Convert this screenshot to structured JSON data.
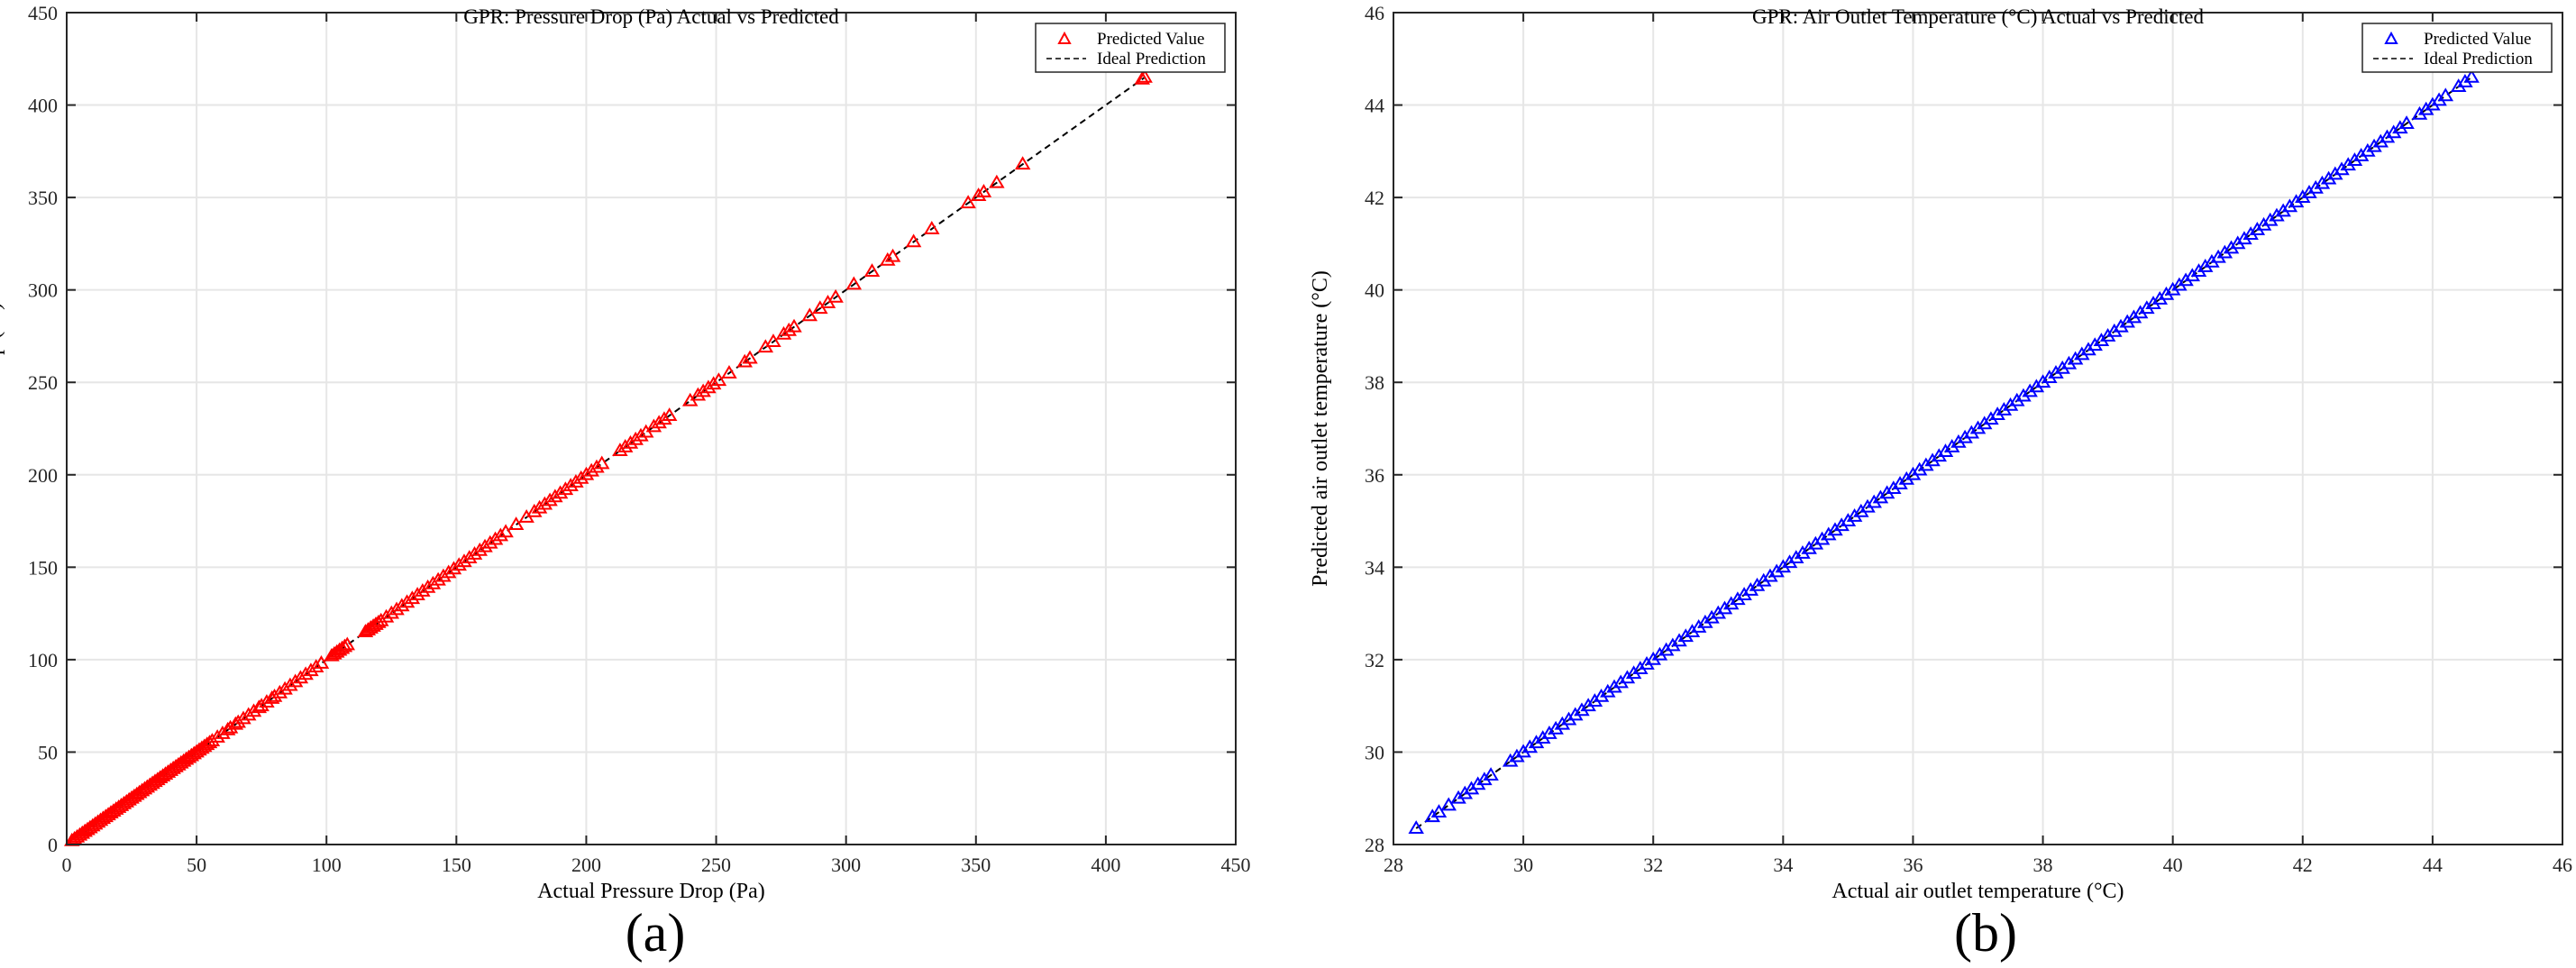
{
  "chart_data": [
    {
      "type": "scatter",
      "panel_label": "(a)",
      "title": "GPR: Pressure Drop (Pa) Actual vs Predicted",
      "xlabel": "Actual Pressure Drop (Pa)",
      "ylabel": "Predicted Pressure Drop (Pa)",
      "xlim": [
        0,
        450
      ],
      "ylim": [
        0,
        450
      ],
      "xticks": [
        0,
        50,
        100,
        150,
        200,
        250,
        300,
        350,
        400,
        450
      ],
      "yticks": [
        0,
        50,
        100,
        150,
        200,
        250,
        300,
        350,
        400,
        450
      ],
      "grid": true,
      "legend_position": "top-right",
      "series": [
        {
          "name": "Predicted Value",
          "marker": "triangle-open",
          "color": "#ff0000",
          "x": [
            2,
            3,
            4,
            5,
            6,
            7,
            8,
            9,
            10,
            11,
            12,
            13,
            14,
            15,
            16,
            17,
            18,
            19,
            20,
            21,
            22,
            23,
            24,
            25,
            26,
            27,
            28,
            29,
            30,
            31,
            32,
            33,
            34,
            35,
            36,
            37,
            38,
            39,
            40,
            41,
            42,
            43,
            44,
            45,
            46,
            47,
            48,
            49,
            50,
            51,
            52,
            53,
            54,
            55,
            56,
            58,
            60,
            62,
            63,
            65,
            66,
            68,
            70,
            72,
            74,
            75,
            77,
            79,
            80,
            82,
            84,
            86,
            88,
            90,
            92,
            94,
            96,
            98,
            102,
            103,
            104,
            105,
            106,
            107,
            108,
            115,
            116,
            117,
            118,
            119,
            120,
            121,
            123,
            125,
            127,
            129,
            131,
            133,
            135,
            137,
            139,
            141,
            143,
            145,
            147,
            149,
            151,
            153,
            155,
            157,
            159,
            161,
            163,
            165,
            167,
            169,
            173,
            177,
            180,
            182,
            184,
            186,
            188,
            190,
            192,
            194,
            196,
            198,
            200,
            202,
            204,
            206,
            213,
            215,
            217,
            219,
            221,
            223,
            226,
            228,
            230,
            232,
            240,
            243,
            245,
            247,
            249,
            251,
            255,
            261,
            263,
            269,
            272,
            276,
            278,
            280,
            286,
            290,
            293,
            296,
            303,
            310,
            316,
            318,
            326,
            333,
            347,
            351,
            353,
            358,
            368,
            414,
            415
          ],
          "y": [
            2,
            3,
            4,
            5,
            6,
            7,
            8,
            9,
            10,
            11,
            12,
            13,
            14,
            15,
            16,
            17,
            18,
            19,
            20,
            21,
            22,
            23,
            24,
            25,
            26,
            27,
            28,
            29,
            30,
            31,
            32,
            33,
            34,
            35,
            36,
            37,
            38,
            39,
            40,
            41,
            42,
            43,
            44,
            45,
            46,
            47,
            48,
            49,
            50,
            51,
            52,
            53,
            54,
            55,
            56,
            58,
            60,
            62,
            63,
            65,
            66,
            68,
            70,
            72,
            74,
            75,
            77,
            79,
            80,
            82,
            84,
            86,
            88,
            90,
            92,
            94,
            96,
            98,
            102,
            103,
            104,
            105,
            106,
            107,
            108,
            115,
            116,
            117,
            118,
            119,
            120,
            121,
            123,
            125,
            127,
            129,
            131,
            133,
            135,
            137,
            139,
            141,
            143,
            145,
            147,
            149,
            151,
            153,
            155,
            157,
            159,
            161,
            163,
            165,
            167,
            169,
            173,
            177,
            180,
            182,
            184,
            186,
            188,
            190,
            192,
            194,
            196,
            198,
            200,
            202,
            204,
            206,
            213,
            215,
            217,
            219,
            221,
            223,
            226,
            228,
            230,
            232,
            240,
            243,
            245,
            247,
            249,
            251,
            255,
            261,
            263,
            269,
            272,
            276,
            278,
            280,
            286,
            290,
            293,
            296,
            303,
            310,
            316,
            318,
            326,
            333,
            347,
            351,
            353,
            358,
            368,
            414,
            415
          ]
        },
        {
          "name": "Ideal Prediction",
          "line": "dashed",
          "color": "#000000",
          "x": [
            0,
            415
          ],
          "y": [
            0,
            415
          ]
        }
      ]
    },
    {
      "type": "scatter",
      "panel_label": "(b)",
      "title": "GPR: Air Outlet Temperature (°C) Actual vs Predicted",
      "xlabel": "Actual air outlet temperature (°C)",
      "ylabel": "Predicted air outlet temperature (°C)",
      "xlim": [
        28,
        46
      ],
      "ylim": [
        28,
        46
      ],
      "xticks": [
        28,
        30,
        32,
        34,
        36,
        38,
        40,
        42,
        44,
        46
      ],
      "yticks": [
        28,
        30,
        32,
        34,
        36,
        38,
        40,
        42,
        44,
        46
      ],
      "grid": true,
      "legend_position": "top-right",
      "series": [
        {
          "name": "Predicted Value",
          "marker": "triangle-open",
          "color": "#0000ff",
          "x": [
            28.35,
            28.6,
            28.7,
            28.85,
            29.0,
            29.1,
            29.2,
            29.3,
            29.4,
            29.5,
            29.8,
            29.9,
            30.0,
            30.1,
            30.2,
            30.3,
            30.4,
            30.5,
            30.6,
            30.7,
            30.8,
            30.9,
            31.0,
            31.1,
            31.2,
            31.3,
            31.4,
            31.5,
            31.6,
            31.7,
            31.8,
            31.9,
            32.0,
            32.1,
            32.2,
            32.3,
            32.4,
            32.5,
            32.6,
            32.7,
            32.8,
            32.9,
            33.0,
            33.1,
            33.2,
            33.3,
            33.4,
            33.5,
            33.6,
            33.7,
            33.8,
            33.9,
            34.0,
            34.1,
            34.2,
            34.3,
            34.4,
            34.5,
            34.6,
            34.7,
            34.8,
            34.9,
            35.0,
            35.1,
            35.2,
            35.3,
            35.4,
            35.5,
            35.6,
            35.7,
            35.8,
            35.9,
            36.0,
            36.1,
            36.2,
            36.3,
            36.4,
            36.5,
            36.6,
            36.7,
            36.8,
            36.9,
            37.0,
            37.1,
            37.2,
            37.3,
            37.4,
            37.5,
            37.6,
            37.7,
            37.8,
            37.9,
            38.0,
            38.1,
            38.2,
            38.3,
            38.4,
            38.5,
            38.6,
            38.7,
            38.8,
            38.9,
            39.0,
            39.1,
            39.2,
            39.3,
            39.4,
            39.5,
            39.6,
            39.7,
            39.8,
            39.9,
            40.0,
            40.1,
            40.2,
            40.3,
            40.4,
            40.5,
            40.6,
            40.7,
            40.8,
            40.9,
            41.0,
            41.1,
            41.2,
            41.3,
            41.4,
            41.5,
            41.6,
            41.7,
            41.8,
            41.9,
            42.0,
            42.1,
            42.2,
            42.3,
            42.4,
            42.5,
            42.6,
            42.7,
            42.8,
            42.9,
            43.0,
            43.1,
            43.2,
            43.3,
            43.4,
            43.5,
            43.6,
            43.8,
            43.9,
            44.0,
            44.1,
            44.2,
            44.4,
            44.5,
            44.6
          ],
          "y": [
            28.35,
            28.6,
            28.7,
            28.85,
            29.0,
            29.1,
            29.2,
            29.3,
            29.4,
            29.5,
            29.8,
            29.9,
            30.0,
            30.1,
            30.2,
            30.3,
            30.4,
            30.5,
            30.6,
            30.7,
            30.8,
            30.9,
            31.0,
            31.1,
            31.2,
            31.3,
            31.4,
            31.5,
            31.6,
            31.7,
            31.8,
            31.9,
            32.0,
            32.1,
            32.2,
            32.3,
            32.4,
            32.5,
            32.6,
            32.7,
            32.8,
            32.9,
            33.0,
            33.1,
            33.2,
            33.3,
            33.4,
            33.5,
            33.6,
            33.7,
            33.8,
            33.9,
            34.0,
            34.1,
            34.2,
            34.3,
            34.4,
            34.5,
            34.6,
            34.7,
            34.8,
            34.9,
            35.0,
            35.1,
            35.2,
            35.3,
            35.4,
            35.5,
            35.6,
            35.7,
            35.8,
            35.9,
            36.0,
            36.1,
            36.2,
            36.3,
            36.4,
            36.5,
            36.6,
            36.7,
            36.8,
            36.9,
            37.0,
            37.1,
            37.2,
            37.3,
            37.4,
            37.5,
            37.6,
            37.7,
            37.8,
            37.9,
            38.0,
            38.1,
            38.2,
            38.3,
            38.4,
            38.5,
            38.6,
            38.7,
            38.8,
            38.9,
            39.0,
            39.1,
            39.2,
            39.3,
            39.4,
            39.5,
            39.6,
            39.7,
            39.8,
            39.9,
            40.0,
            40.1,
            40.2,
            40.3,
            40.4,
            40.5,
            40.6,
            40.7,
            40.8,
            40.9,
            41.0,
            41.1,
            41.2,
            41.3,
            41.4,
            41.5,
            41.6,
            41.7,
            41.8,
            41.9,
            42.0,
            42.1,
            42.2,
            42.3,
            42.4,
            42.5,
            42.6,
            42.7,
            42.8,
            42.9,
            43.0,
            43.1,
            43.2,
            43.3,
            43.4,
            43.5,
            43.6,
            43.8,
            43.9,
            44.0,
            44.1,
            44.2,
            44.4,
            44.5,
            44.6
          ]
        },
        {
          "name": "Ideal Prediction",
          "line": "dashed",
          "color": "#000000",
          "x": [
            28.35,
            44.6
          ],
          "y": [
            28.35,
            44.6
          ]
        }
      ]
    }
  ]
}
